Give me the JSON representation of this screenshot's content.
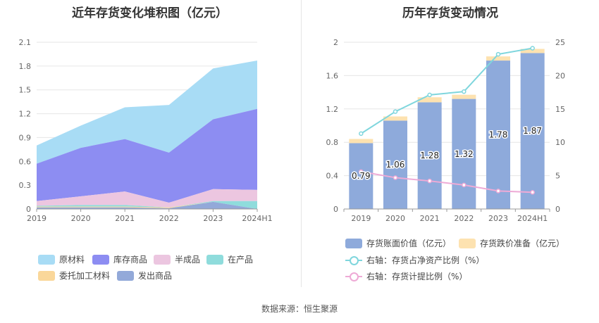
{
  "left_chart": {
    "title": "近年存货变化堆积图（亿元）"
  },
  "right_chart": {
    "title": "历年存货变动情况"
  },
  "source": "数据来源：恒生聚源",
  "colors": {
    "raw_material": "#a8dcf5",
    "inventory_goods": "#8d8df2",
    "semi_finished": "#ecc6e0",
    "in_process": "#8fdcdc",
    "consigned_material": "#fad79a",
    "shipped_goods": "#93a9d9",
    "book_value_bar": "#8eaadb",
    "impairment_bar": "#fde2b0",
    "ratio_line": "#7fd6dd",
    "provision_line": "#eeaad6"
  },
  "chart_data": [
    {
      "type": "area",
      "stacked": true,
      "title": "近年存货变化堆积图（亿元）",
      "categories": [
        "2019",
        "2020",
        "2021",
        "2022",
        "2023",
        "2024H1"
      ],
      "ylim": [
        0,
        2.1
      ],
      "yticks": [
        "0",
        "0.3",
        "0.6",
        "0.9",
        "1.2",
        "1.5",
        "1.8",
        "2.1"
      ],
      "grid": true,
      "legend_position": "bottom",
      "series": [
        {
          "name": "发出商品",
          "key": "shipped_goods",
          "values": [
            0.02,
            0.02,
            0.02,
            0.01,
            0.09,
            0.0
          ]
        },
        {
          "name": "委托加工材料",
          "key": "consigned_material",
          "values": [
            0.01,
            0.01,
            0.01,
            0.01,
            0.0,
            0.0
          ]
        },
        {
          "name": "在产品",
          "key": "in_process",
          "values": [
            0.01,
            0.02,
            0.02,
            0.0,
            0.01,
            0.1
          ]
        },
        {
          "name": "半成品",
          "key": "semi_finished",
          "values": [
            0.06,
            0.11,
            0.17,
            0.06,
            0.15,
            0.14
          ]
        },
        {
          "name": "库存商品",
          "key": "inventory_goods",
          "values": [
            0.47,
            0.61,
            0.66,
            0.63,
            0.88,
            1.02
          ]
        },
        {
          "name": "原材料",
          "key": "raw_material",
          "values": [
            0.23,
            0.28,
            0.4,
            0.6,
            0.64,
            0.61
          ]
        }
      ],
      "legend_order": [
        "原材料",
        "库存商品",
        "半成品",
        "在产品",
        "委托加工材料",
        "发出商品"
      ]
    },
    {
      "type": "bar",
      "stacked": true,
      "title": "历年存货变动情况",
      "categories": [
        "2019",
        "2020",
        "2021",
        "2022",
        "2023",
        "2024H1"
      ],
      "ylim": [
        0,
        2
      ],
      "yticks": [
        "0",
        "0.4",
        "0.8",
        "1.2",
        "1.6",
        "2"
      ],
      "y2lim": [
        0,
        25
      ],
      "y2ticks": [
        "0",
        "5",
        "10",
        "15",
        "20",
        "25"
      ],
      "grid": true,
      "legend_position": "bottom",
      "bar_series": [
        {
          "name": "存货账面价值（亿元）",
          "values": [
            0.79,
            1.06,
            1.28,
            1.32,
            1.78,
            1.87
          ],
          "labels": [
            "0.79",
            "1.06",
            "1.28",
            "1.32",
            "1.78",
            "1.87"
          ]
        },
        {
          "name": "存货跌价准备（亿元）",
          "values": [
            0.05,
            0.05,
            0.06,
            0.05,
            0.05,
            0.05
          ]
        }
      ],
      "line_series": [
        {
          "name": "右轴：存货占净资产比例（%）",
          "axis": "right",
          "values": [
            11.3,
            14.6,
            17.1,
            17.6,
            23.2,
            24.1
          ]
        },
        {
          "name": "右轴：存货计提比例（%）",
          "axis": "right",
          "values": [
            5.6,
            4.7,
            4.2,
            3.6,
            2.7,
            2.5
          ]
        }
      ]
    }
  ],
  "legend_left": [
    {
      "label": "原材料",
      "color_key": "raw_material"
    },
    {
      "label": "库存商品",
      "color_key": "inventory_goods"
    },
    {
      "label": "半成品",
      "color_key": "semi_finished"
    },
    {
      "label": "在产品",
      "color_key": "in_process"
    },
    {
      "label": "委托加工材料",
      "color_key": "consigned_material"
    },
    {
      "label": "发出商品",
      "color_key": "shipped_goods"
    }
  ],
  "legend_right": [
    {
      "label": "存货账面价值（亿元）",
      "kind": "bar",
      "color_key": "book_value_bar"
    },
    {
      "label": "存货跌价准备（亿元）",
      "kind": "bar",
      "color_key": "impairment_bar"
    },
    {
      "label": "右轴：存货占净资产比例（%）",
      "kind": "line",
      "color_key": "ratio_line"
    },
    {
      "label": "右轴：存货计提比例（%）",
      "kind": "line",
      "color_key": "provision_line"
    }
  ]
}
